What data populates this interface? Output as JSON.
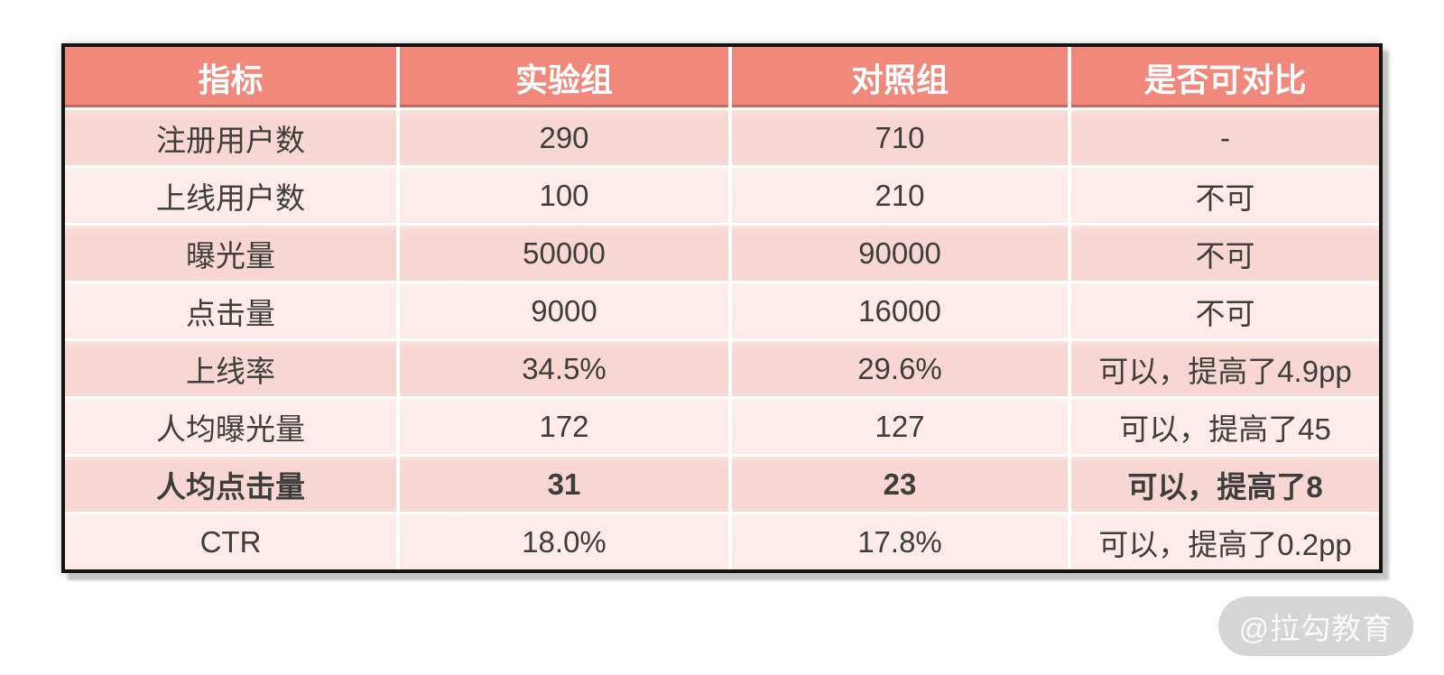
{
  "chart_data": {
    "type": "table",
    "title": "",
    "columns": [
      "指标",
      "实验组",
      "对照组",
      "是否可对比"
    ],
    "rows": [
      {
        "metric": "注册用户数",
        "experiment": "290",
        "control": "710",
        "comparable": "-"
      },
      {
        "metric": "上线用户数",
        "experiment": "100",
        "control": "210",
        "comparable": "不可"
      },
      {
        "metric": "曝光量",
        "experiment": "50000",
        "control": "90000",
        "comparable": "不可"
      },
      {
        "metric": "点击量",
        "experiment": "9000",
        "control": "16000",
        "comparable": "不可"
      },
      {
        "metric": "上线率",
        "experiment": "34.5%",
        "control": "29.6%",
        "comparable": "可以，提高了4.9pp"
      },
      {
        "metric": "人均曝光量",
        "experiment": "172",
        "control": "127",
        "comparable": "可以，提高了45"
      },
      {
        "metric": "人均点击量",
        "experiment": "31",
        "control": "23",
        "comparable": "可以，提高了8"
      },
      {
        "metric": "CTR",
        "experiment": "18.0%",
        "control": "17.8%",
        "comparable": "可以，提高了0.2pp"
      }
    ],
    "emphasized_row_index": 6,
    "colors": {
      "header_bg": "#F0897B",
      "row_odd_bg": "#F8D7D2",
      "row_even_bg": "#FCEBE8",
      "outer_border": "#141414",
      "header_text": "#FFFFFF",
      "body_text": "#3D3D3D",
      "watermark_bg": "#B2B2B2",
      "watermark_text": "#FFFFFF"
    }
  },
  "watermark": {
    "label": "@拉勾教育"
  }
}
